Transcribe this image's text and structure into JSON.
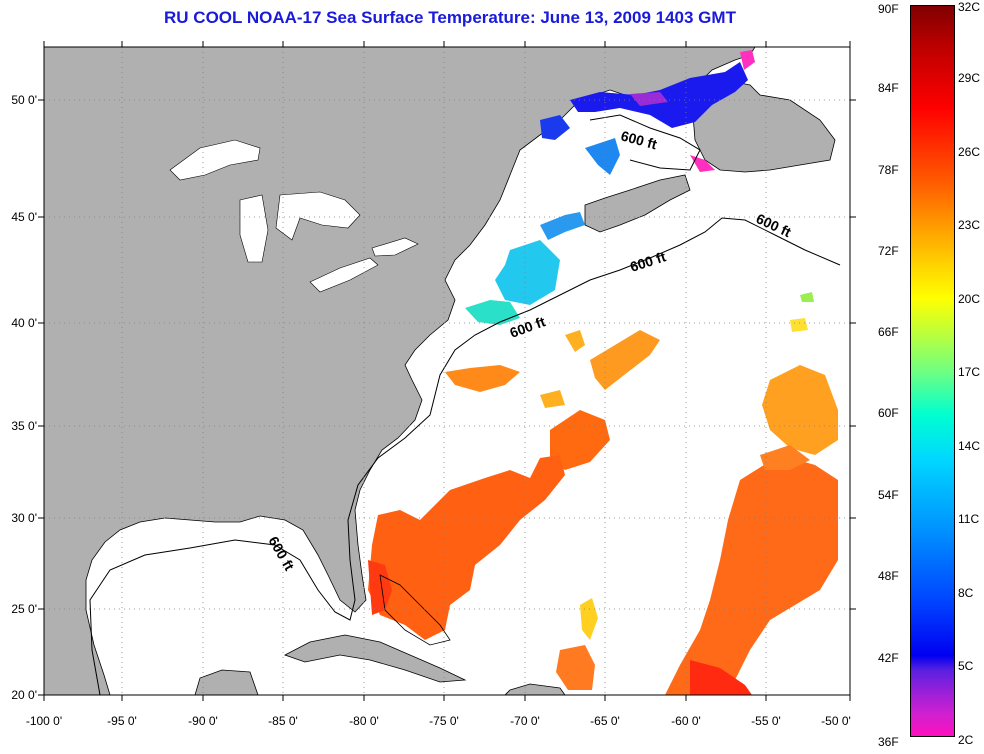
{
  "title": "RU COOL  NOAA-17  Sea Surface Temperature:  June 13, 2009 1403 GMT",
  "map": {
    "lon_ticks": [
      "-100 0'",
      "-95 0'",
      "-90 0'",
      "-85 0'",
      "-80 0'",
      "-75 0'",
      "-70 0'",
      "-65 0'",
      "-60 0'",
      "-55 0'",
      "-50 0'"
    ],
    "lat_ticks": [
      "50 0'",
      "45 0'",
      "40 0'",
      "35 0'",
      "30 0'",
      "25 0'",
      "20 0'"
    ],
    "contour_label": "600 ft",
    "colors": {
      "land": "#b0b0b0",
      "water": "#ffffff",
      "grid": "#808080"
    }
  },
  "colorbar": {
    "fahrenheit": [
      "90F",
      "84F",
      "78F",
      "72F",
      "66F",
      "60F",
      "54F",
      "48F",
      "42F",
      "36F"
    ],
    "celsius": [
      "32C",
      "29C",
      "26C",
      "23C",
      "20C",
      "17C",
      "14C",
      "11C",
      "8C",
      "5C",
      "2C"
    ]
  }
}
